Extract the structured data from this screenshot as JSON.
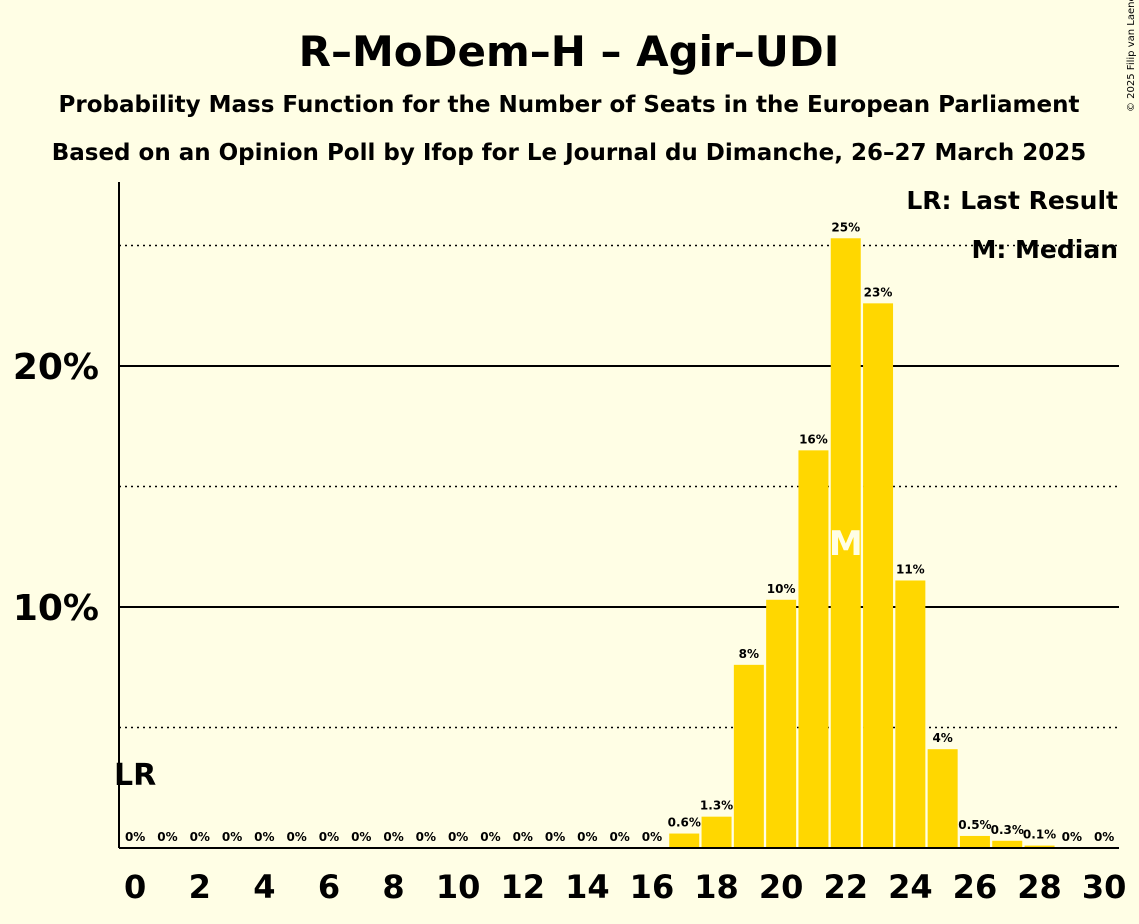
{
  "copyright": "© 2025 Filip van Laenen",
  "legend": {
    "last_result": "LR: Last Result",
    "median": "M: Median"
  },
  "markers": {
    "last_result": "LR",
    "median": "M"
  },
  "colors": {
    "bar": "#FFD700",
    "background": "#FFFEE5",
    "median_text": "#FFFEE5"
  },
  "chart_data": {
    "type": "bar",
    "title": "R–MoDem–H – Agir–UDI",
    "subtitle": "Probability Mass Function for the Number of Seats in the European Parliament",
    "subtitle2": "Based on an Opinion Poll by Ifop for Le Journal du Dimanche, 26–27 March 2025",
    "categories": [
      0,
      1,
      2,
      3,
      4,
      5,
      6,
      7,
      8,
      9,
      10,
      11,
      12,
      13,
      14,
      15,
      16,
      17,
      18,
      19,
      20,
      21,
      22,
      23,
      24,
      25,
      26,
      27,
      28,
      29,
      30
    ],
    "values": [
      0,
      0,
      0,
      0,
      0,
      0,
      0,
      0,
      0,
      0,
      0,
      0,
      0,
      0,
      0,
      0,
      0,
      0.6,
      1.3,
      7.6,
      10.3,
      16.5,
      25.3,
      22.6,
      11.1,
      4.1,
      0.5,
      0.3,
      0.1,
      0,
      0
    ],
    "labels": [
      "0%",
      "0%",
      "0%",
      "0%",
      "0%",
      "0%",
      "0%",
      "0%",
      "0%",
      "0%",
      "0%",
      "0%",
      "0%",
      "0%",
      "0%",
      "0%",
      "0%",
      "0.6%",
      "1.3%",
      "8%",
      "10%",
      "16%",
      "25%",
      "23%",
      "11%",
      "4%",
      "0.5%",
      "0.3%",
      "0.1%",
      "0%",
      "0%"
    ],
    "x_ticks": [
      "0",
      "2",
      "4",
      "6",
      "8",
      "10",
      "12",
      "14",
      "16",
      "18",
      "20",
      "22",
      "24",
      "26",
      "28",
      "30"
    ],
    "y_ticks": [
      "10%",
      "20%"
    ],
    "ylim": [
      0,
      27.5
    ],
    "last_result_seat": 0,
    "median_seat": 22,
    "legend_position": "top-right"
  }
}
